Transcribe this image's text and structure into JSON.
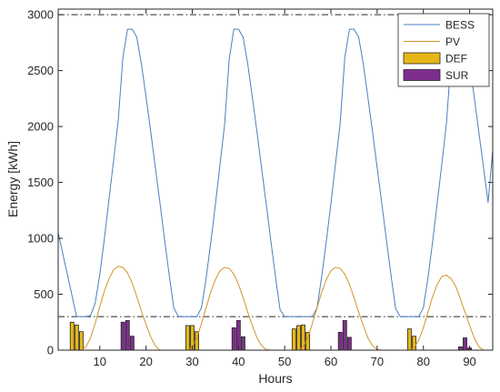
{
  "chart_data": {
    "type": "line",
    "xlabel": "Hours",
    "ylabel": "Energy [kWh]",
    "xlim": [
      1,
      95
    ],
    "ylim": [
      0,
      3050
    ],
    "xticks": [
      10,
      20,
      30,
      40,
      50,
      60,
      70,
      80,
      90
    ],
    "yticks": [
      0,
      500,
      1000,
      1500,
      2000,
      2500,
      3000
    ],
    "grid": false,
    "legend": "top-right",
    "reference_lines": [
      3000,
      300
    ],
    "series": [
      {
        "name": "BESS",
        "type": "line",
        "color": "#4a7fc1",
        "x": [
          1,
          5,
          7,
          8,
          9,
          10,
          11,
          12,
          13,
          14,
          15,
          16,
          17,
          18,
          19,
          20,
          21,
          22,
          23,
          24,
          25,
          26,
          27,
          28,
          29,
          31,
          32,
          33,
          34,
          35,
          36,
          37,
          38,
          39,
          40,
          41,
          42,
          43,
          44,
          45,
          46,
          47,
          48,
          49,
          50,
          51,
          52,
          53,
          54,
          56,
          57,
          58,
          59,
          60,
          61,
          62,
          63,
          64,
          65,
          66,
          67,
          68,
          69,
          70,
          71,
          72,
          73,
          74,
          75,
          76,
          77,
          79,
          80,
          81,
          82,
          83,
          84,
          85,
          86,
          87,
          88,
          89,
          90,
          91,
          92,
          93,
          94,
          95
        ],
        "values": [
          1050,
          300,
          300,
          310,
          420,
          680,
          1000,
          1350,
          1700,
          2060,
          2620,
          2870,
          2870,
          2800,
          2560,
          2270,
          1960,
          1640,
          1320,
          990,
          680,
          380,
          300,
          300,
          300,
          300,
          380,
          640,
          960,
          1300,
          1660,
          2020,
          2600,
          2870,
          2870,
          2800,
          2560,
          2260,
          1950,
          1630,
          1310,
          980,
          660,
          360,
          300,
          300,
          300,
          300,
          300,
          300,
          380,
          660,
          970,
          1310,
          1670,
          2030,
          2620,
          2870,
          2870,
          2800,
          2560,
          2260,
          1950,
          1630,
          1310,
          990,
          670,
          370,
          300,
          300,
          300,
          300,
          380,
          650,
          970,
          1320,
          1670,
          2030,
          2610,
          2870,
          2870,
          2800,
          2560,
          2260,
          1950,
          1640,
          1320,
          1790
        ]
      },
      {
        "name": "PV",
        "type": "line",
        "color": "#d4932a",
        "x": [
          1,
          6,
          7,
          8,
          9,
          10,
          11,
          12,
          13,
          14,
          15,
          16,
          17,
          18,
          19,
          20,
          21,
          22,
          23,
          29,
          30,
          31,
          32,
          33,
          34,
          35,
          36,
          37,
          38,
          39,
          40,
          41,
          42,
          43,
          44,
          45,
          46,
          47,
          53,
          54,
          55,
          56,
          57,
          58,
          59,
          60,
          61,
          62,
          63,
          64,
          65,
          66,
          67,
          68,
          69,
          70,
          71,
          77,
          78,
          79,
          80,
          81,
          82,
          83,
          84,
          85,
          86,
          87,
          88,
          89,
          90,
          91,
          92,
          93,
          95
        ],
        "values": [
          0,
          0,
          30,
          110,
          240,
          390,
          530,
          640,
          720,
          750,
          740,
          690,
          600,
          480,
          350,
          230,
          120,
          40,
          0,
          0,
          30,
          110,
          240,
          380,
          520,
          630,
          710,
          740,
          730,
          680,
          590,
          470,
          340,
          220,
          110,
          40,
          5,
          0,
          0,
          30,
          110,
          240,
          380,
          520,
          630,
          710,
          740,
          730,
          680,
          590,
          470,
          340,
          220,
          110,
          40,
          5,
          0,
          0,
          20,
          90,
          200,
          340,
          480,
          590,
          660,
          670,
          640,
          570,
          460,
          340,
          220,
          110,
          30,
          0,
          0
        ]
      },
      {
        "name": "DEF",
        "type": "bar",
        "color": "#e6b817",
        "x": [
          4,
          5,
          6,
          29,
          30,
          31,
          52,
          53,
          54,
          55,
          77,
          78
        ],
        "values": [
          250,
          225,
          165,
          220,
          220,
          165,
          190,
          220,
          225,
          160,
          190,
          125
        ]
      },
      {
        "name": "SUR",
        "type": "bar",
        "color": "#7e2f8e",
        "x": [
          15,
          16,
          17,
          39,
          40,
          41,
          62,
          63,
          64,
          88,
          89,
          90
        ],
        "values": [
          250,
          265,
          125,
          200,
          265,
          120,
          160,
          265,
          115,
          30,
          110,
          20
        ]
      }
    ]
  }
}
